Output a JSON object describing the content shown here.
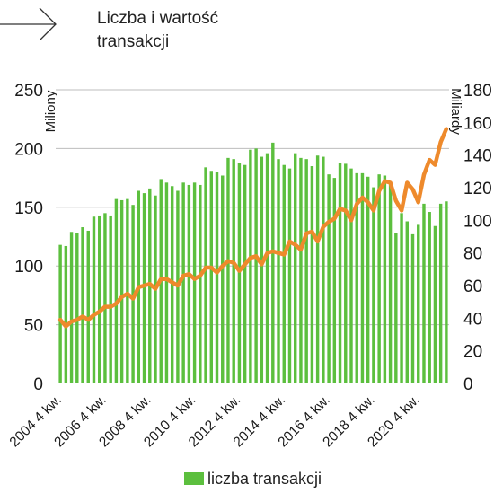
{
  "title": "Liczba i wartość transakcji",
  "legend": {
    "bar_label": "liczba transakcji"
  },
  "colors": {
    "bars": "#5cbf3e",
    "line": "#ee8a2c",
    "grid": "#bdbdbd"
  },
  "chart_data": {
    "type": "bar+line",
    "title": "Liczba i wartość transakcji",
    "left_axis": {
      "label": "Miliony",
      "ylim": [
        0,
        250
      ],
      "ticks": [
        0,
        50,
        100,
        150,
        200,
        250
      ]
    },
    "right_axis": {
      "label": "Miliardy",
      "ylim": [
        0,
        180
      ],
      "ticks": [
        0,
        20,
        40,
        60,
        80,
        100,
        120,
        140,
        160,
        180
      ]
    },
    "x_tick_labels": [
      "2004 4 kw.",
      "2006 4 kw.",
      "2008 4 kw.",
      "2010 4 kw.",
      "2012 4 kw.",
      "2014 4 kw.",
      "2016 4 kw.",
      "2018 4 kw.",
      "2020 4 kw."
    ],
    "x_tick_every": 8,
    "grid": true,
    "series": [
      {
        "name": "liczba transakcji",
        "type": "bar",
        "axis": "left",
        "values": [
          118,
          117,
          129,
          128,
          133,
          130,
          142,
          143,
          145,
          143,
          157,
          156,
          157,
          152,
          164,
          162,
          166,
          160,
          174,
          171,
          168,
          164,
          171,
          169,
          171,
          169,
          184,
          181,
          180,
          177,
          192,
          191,
          188,
          186,
          199,
          200,
          193,
          196,
          205,
          191,
          186,
          183,
          196,
          192,
          191,
          185,
          194,
          193,
          178,
          175,
          188,
          187,
          183,
          179,
          179,
          176,
          167,
          178,
          177,
          170,
          128,
          145,
          138,
          127,
          135,
          153,
          146,
          134,
          153,
          155
        ]
      },
      {
        "type": "line",
        "axis": "right",
        "values": [
          39,
          35,
          38,
          39,
          41,
          39,
          42,
          44,
          47,
          47,
          49,
          53,
          55,
          52,
          59,
          60,
          61,
          58,
          64,
          64,
          62,
          60,
          66,
          67,
          64,
          66,
          71,
          71,
          68,
          72,
          75,
          74,
          69,
          73,
          77,
          78,
          73,
          80,
          81,
          80,
          79,
          87,
          85,
          82,
          92,
          93,
          87,
          96,
          99,
          101,
          107,
          106,
          100,
          110,
          114,
          111,
          106,
          118,
          124,
          123,
          112,
          106,
          123,
          119,
          111,
          128,
          137,
          134,
          148,
          156
        ]
      }
    ]
  }
}
